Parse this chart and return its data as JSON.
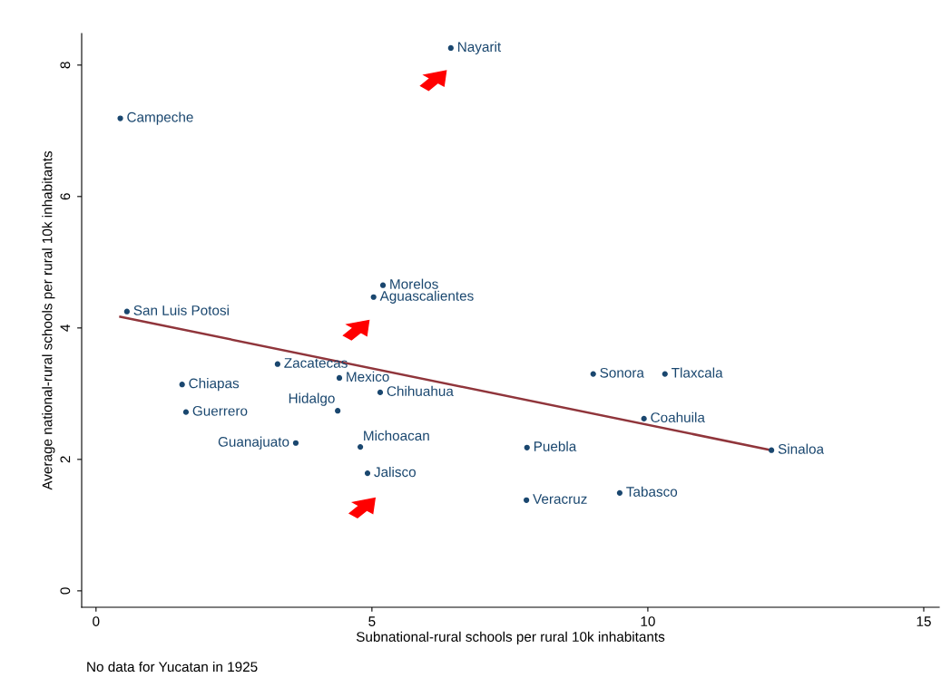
{
  "chart_data": {
    "type": "scatter",
    "xlabel": "Subnational-rural schools per rural 10k inhabitants",
    "ylabel": "Average national-rural schools per rural 10k inhabitants",
    "xlim": [
      -0.26,
      15.28
    ],
    "ylim": [
      -0.25,
      8.48
    ],
    "xticks": [
      0,
      5,
      10,
      15
    ],
    "yticks": [
      0,
      2,
      4,
      6,
      8
    ],
    "grid": false,
    "series": [
      {
        "marker": "circle",
        "color": "#1a476f",
        "x": [
          6.43,
          0.44,
          5.2,
          5.03,
          0.56,
          3.29,
          4.41,
          1.56,
          5.15,
          4.38,
          1.63,
          3.62,
          4.79,
          4.92,
          9.01,
          10.31,
          9.93,
          7.81,
          12.24,
          7.8,
          9.49
        ],
        "values": [
          8.26,
          7.19,
          4.65,
          4.47,
          4.25,
          3.45,
          3.24,
          3.14,
          3.02,
          2.74,
          2.72,
          2.25,
          2.19,
          1.79,
          3.3,
          3.3,
          2.62,
          2.18,
          2.14,
          1.38,
          1.49
        ]
      },
      {
        "type": "line",
        "marker": "none",
        "color": "#90353b",
        "x": [
          0.44,
          12.24
        ],
        "values": [
          4.17,
          2.14
        ]
      }
    ],
    "annotations": [
      {
        "text": "Nayarit",
        "x": 6.43,
        "y": 8.26
      },
      {
        "text": "Campeche",
        "x": 0.44,
        "y": 7.19
      },
      {
        "text": "Morelos",
        "x": 5.2,
        "y": 4.65
      },
      {
        "text": "Aguascalientes",
        "x": 5.03,
        "y": 4.47
      },
      {
        "text": "San Luis Potosi",
        "x": 0.56,
        "y": 4.25
      },
      {
        "text": "Zacatecas",
        "x": 3.29,
        "y": 3.45
      },
      {
        "text": "Mexico",
        "x": 4.41,
        "y": 3.24
      },
      {
        "text": "Chiapas",
        "x": 1.56,
        "y": 3.14
      },
      {
        "text": "Chihuahua",
        "x": 5.15,
        "y": 3.02
      },
      {
        "text": "Hidalgo",
        "x": 4.38,
        "y": 2.74
      },
      {
        "text": "Guerrero",
        "x": 1.63,
        "y": 2.72
      },
      {
        "text": "Guanajuato",
        "x": 3.62,
        "y": 2.25
      },
      {
        "text": "Michoacan",
        "x": 4.79,
        "y": 2.19
      },
      {
        "text": "Jalisco",
        "x": 4.92,
        "y": 1.79
      },
      {
        "text": "Sonora",
        "x": 9.01,
        "y": 3.3
      },
      {
        "text": "Tlaxcala",
        "x": 10.31,
        "y": 3.3
      },
      {
        "text": "Coahuila",
        "x": 9.93,
        "y": 2.62
      },
      {
        "text": "Puebla",
        "x": 7.81,
        "y": 2.18
      },
      {
        "text": "Sinaloa",
        "x": 12.24,
        "y": 2.14
      },
      {
        "text": "Veracruz",
        "x": 7.8,
        "y": 1.38
      },
      {
        "text": "Tabasco",
        "x": 9.49,
        "y": 1.49
      },
      "No data for Yucatan in 1925"
    ]
  }
}
